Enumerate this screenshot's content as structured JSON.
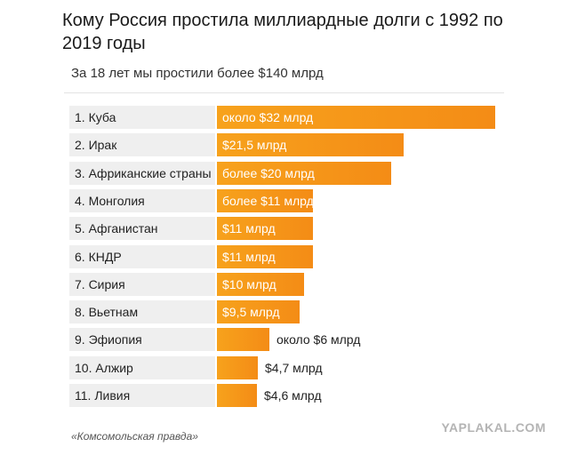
{
  "header": {
    "title": "Кому Россия простила миллиардные долги с 1992 по 2019 годы",
    "subtitle": "За 18 лет мы простили более $140 млрд"
  },
  "footer": {
    "source": "«Комсомольская правда»",
    "watermark": "YAPLAKAL.COM"
  },
  "chart_data": {
    "type": "bar",
    "orientation": "horizontal",
    "categories": [
      "1. Куба",
      "2. Ирак",
      "3. Африканские страны",
      "4. Монголия",
      "5. Афганистан",
      "6. КНДР",
      "7. Сирия",
      "8. Вьетнам",
      "9. Эфиопия",
      "10. Алжир",
      "11. Ливия"
    ],
    "values": [
      32,
      21.5,
      20,
      11,
      11,
      11,
      10,
      9.5,
      6,
      4.7,
      4.6
    ],
    "data_labels": [
      "около $32 млрд",
      "$21,5 млрд",
      "более $20 млрд",
      "более $11 млрд",
      "$11 млрд",
      "$11 млрд",
      "$10 млрд",
      "$9,5 млрд",
      "около $6 млрд",
      "$4,7 млрд",
      "$4,6 млрд"
    ],
    "unit": "млрд $",
    "bar_color": "#f7a21c",
    "label_bg_color": "#efefef",
    "grid": false,
    "legend": false
  }
}
